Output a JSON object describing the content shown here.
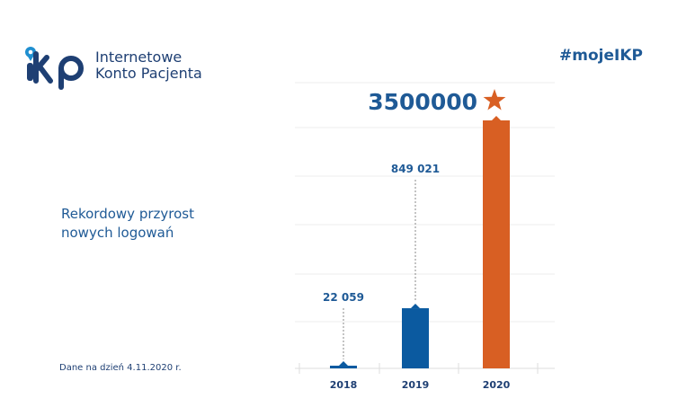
{
  "logo": {
    "text_line1": "Internetowe",
    "text_line2": "Konto Pacjenta",
    "mark": "ikp"
  },
  "hashtag": "#mojeIKP",
  "subtitle_line1": "Rekordowy przyrost",
  "subtitle_line2": "nowych logowań",
  "footnote": "Dane na dzień 4.11.2020 r.",
  "colors": {
    "blue": "#0b5aa0",
    "orange": "#d85f23",
    "dark_blue": "#1e3f73"
  },
  "chart_data": {
    "type": "bar",
    "categories": [
      "2018",
      "2019",
      "2020"
    ],
    "values": [
      22059,
      849021,
      3500000
    ],
    "data_labels": [
      "22 059",
      "849 021",
      "3500000"
    ],
    "bar_colors": [
      "#0b5aa0",
      "#0b5aa0",
      "#d85f23"
    ],
    "highlight_icon": "star-icon",
    "grid": true,
    "ylim": [
      0,
      3500000
    ]
  }
}
